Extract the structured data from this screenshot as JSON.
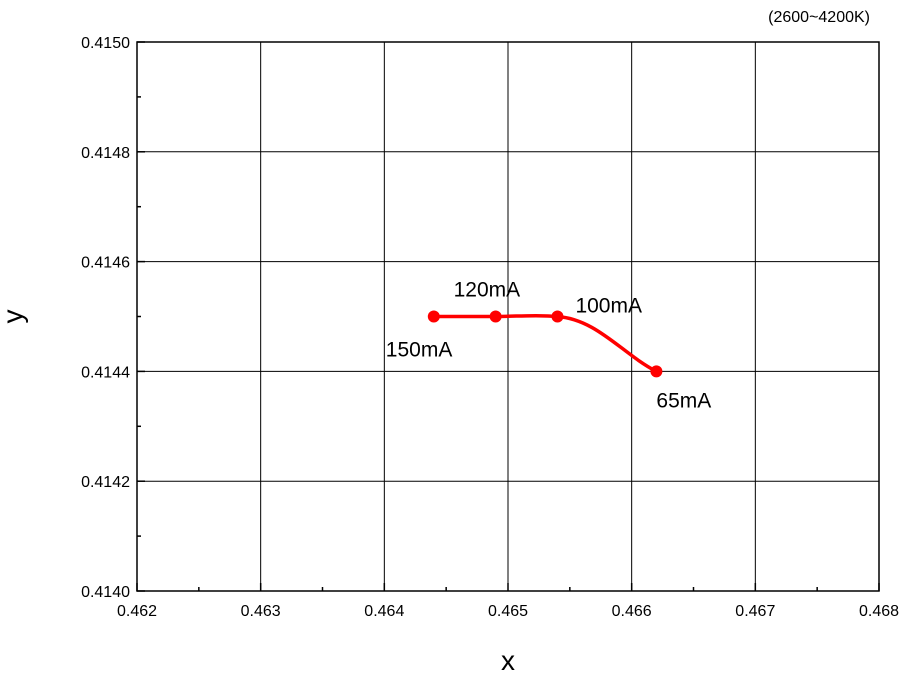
{
  "chart_data": {
    "type": "line",
    "title": "",
    "note": "(2600~4200K)",
    "xlabel": "x",
    "ylabel": "y",
    "xlim": [
      0.462,
      0.468
    ],
    "ylim": [
      0.414,
      0.415
    ],
    "x_ticks": [
      "0.462",
      "0.463",
      "0.464",
      "0.465",
      "0.466",
      "0.467",
      "0.468"
    ],
    "y_ticks": [
      "0.4140",
      "0.4142",
      "0.4144",
      "0.4146",
      "0.4148",
      "0.4150"
    ],
    "grid": true,
    "color": "#ff0000",
    "points": [
      {
        "x": 0.4644,
        "y": 0.4145,
        "label": "150mA"
      },
      {
        "x": 0.4649,
        "y": 0.4145,
        "label": "120mA"
      },
      {
        "x": 0.4654,
        "y": 0.4145,
        "label": "100mA"
      },
      {
        "x": 0.4662,
        "y": 0.4144,
        "label": "65mA"
      }
    ]
  }
}
